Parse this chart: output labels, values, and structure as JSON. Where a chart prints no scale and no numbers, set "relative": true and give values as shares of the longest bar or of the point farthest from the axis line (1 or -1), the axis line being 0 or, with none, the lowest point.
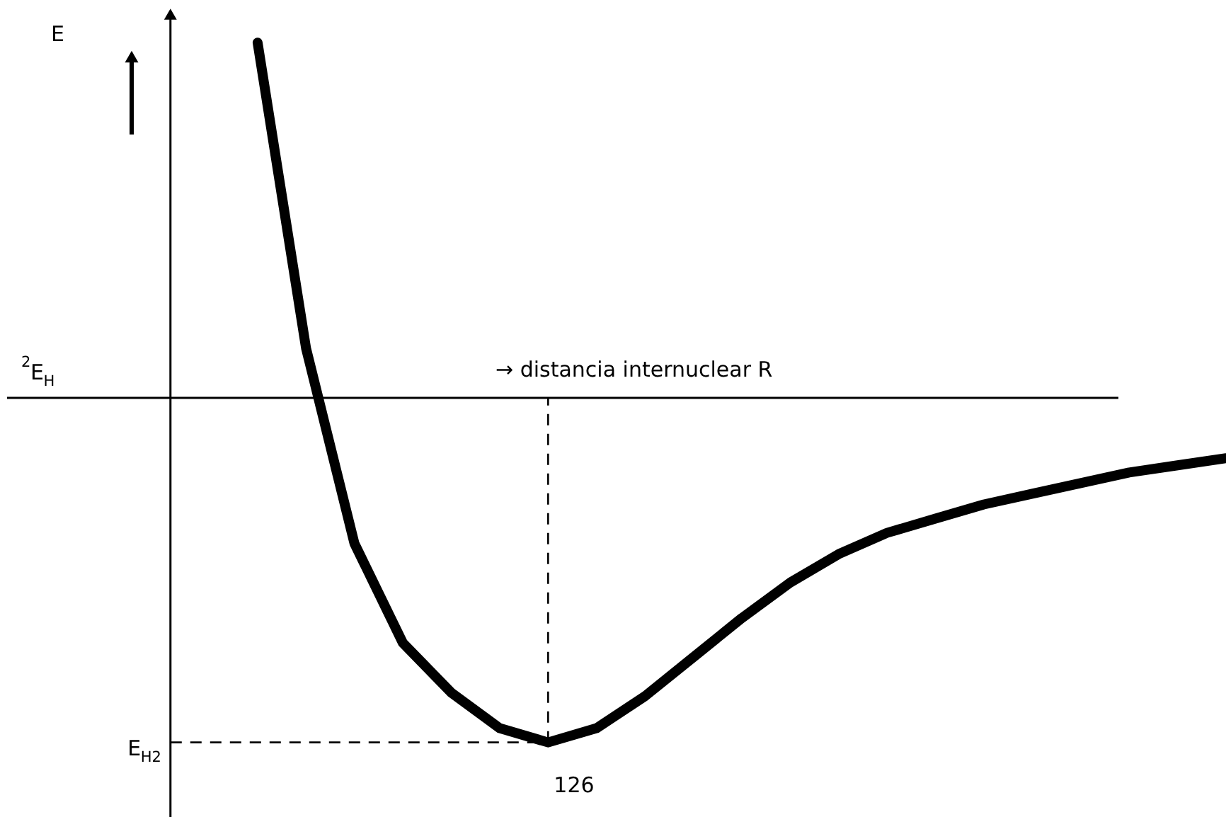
{
  "chart_data": {
    "type": "line",
    "relative": true,
    "xlabel": "→ distancia internuclear R",
    "categories": [
      null,
      null,
      null,
      null,
      null,
      null,
      null,
      null,
      null,
      null,
      null,
      null,
      null,
      null,
      null,
      null,
      null,
      null,
      null,
      null,
      null
    ],
    "series": [
      {
        "color": "#000000",
        "values": [
          1.0,
          0.14,
          -0.41,
          -0.69,
          -0.83,
          -0.93,
          -0.97,
          -0.93,
          -0.84,
          -0.73,
          -0.62,
          -0.52,
          -0.44,
          -0.38,
          -0.34,
          -0.3,
          -0.27,
          -0.24,
          -0.21,
          -0.19,
          -0.17
        ]
      }
    ],
    "ref_lines": [
      {
        "axis": "y",
        "value": 0,
        "label": "$^{2}$E$_{H}$",
        "line_style": "solid"
      },
      {
        "axis": "y",
        "value": -0.97,
        "label": "E$_{H2}$",
        "line_style": "dashed"
      }
    ],
    "annotations": [
      {
        "text": "126",
        "y": -0.97
      },
      "E"
    ],
    "line_style": "solid"
  }
}
